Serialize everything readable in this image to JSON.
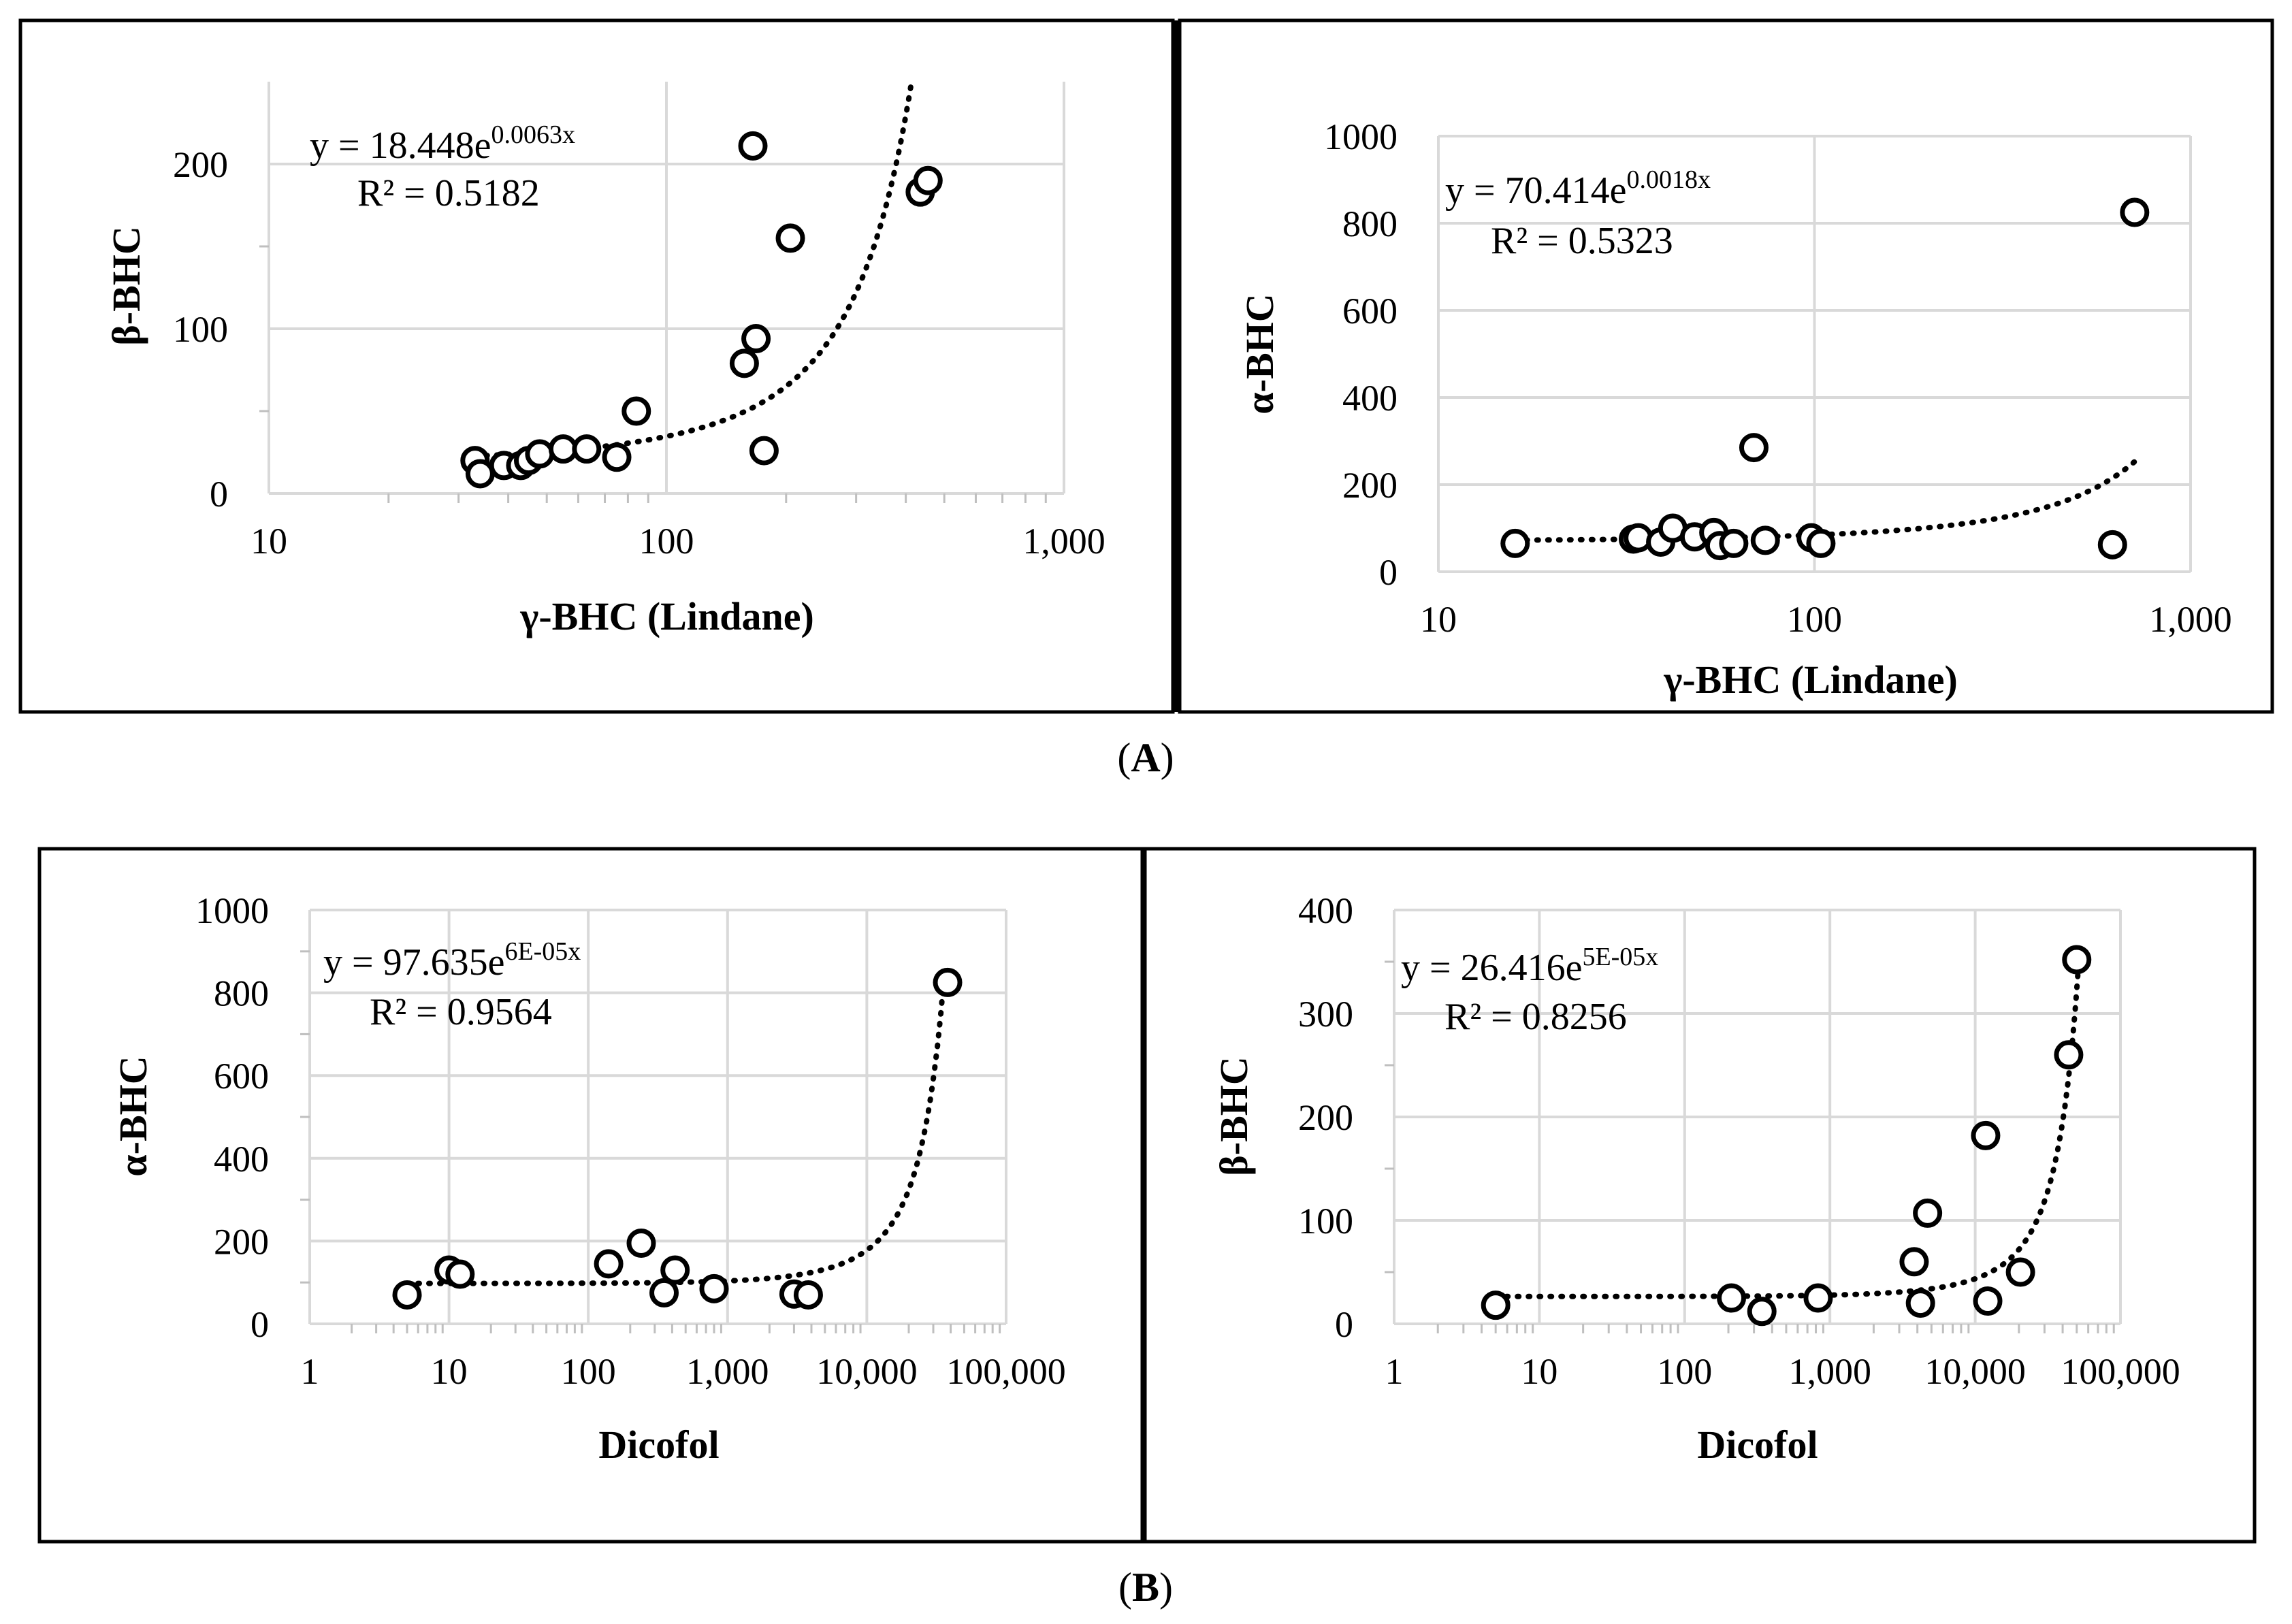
{
  "figure": {
    "label_a": "(A)",
    "label_a_letter": "A",
    "label_b": "(B)",
    "label_b_letter": "B",
    "stroke_color": "#000000",
    "grid_color": "#d9d9d9"
  },
  "chart_data": [
    {
      "id": "a-left",
      "type": "scatter",
      "x_scale": "log",
      "xlim": [
        10,
        1000
      ],
      "ylim": [
        0,
        250
      ],
      "x_ticks": [
        10,
        100,
        1000
      ],
      "x_tick_labels": [
        "10",
        "100",
        "1,000"
      ],
      "y_ticks": [
        0,
        100,
        200
      ],
      "y_tick_labels": [
        "0",
        "100",
        "200"
      ],
      "y_grid": [
        0,
        100,
        200
      ],
      "xlabel": "γ-BHC (Lindane)",
      "ylabel": "β-BHC",
      "equation_main": "y = 18.448e",
      "equation_exp": "0.0063x",
      "r2": "R² = 0.5182",
      "trend": {
        "kind": "exp",
        "a": 18.448,
        "b": 0.0063,
        "x_from": 33,
        "x_to": 415
      },
      "x": [
        33,
        34,
        39,
        43,
        45,
        48,
        55,
        63,
        75,
        84,
        157,
        165,
        168,
        176,
        205,
        435,
        455
      ],
      "y": [
        20,
        12,
        17,
        17,
        20,
        24,
        27,
        27,
        22,
        50,
        79,
        211,
        94,
        26,
        155,
        183,
        190
      ]
    },
    {
      "id": "a-right",
      "type": "scatter",
      "x_scale": "log",
      "xlim": [
        10,
        1000
      ],
      "ylim": [
        0,
        1000
      ],
      "x_ticks": [
        10,
        100,
        1000
      ],
      "x_tick_labels": [
        "10",
        "100",
        "1,000"
      ],
      "y_ticks": [
        0,
        200,
        400,
        600,
        800,
        1000
      ],
      "y_tick_labels": [
        "0",
        "200",
        "400",
        "600",
        "800",
        "1000"
      ],
      "y_grid": [
        200,
        400,
        600,
        800,
        1000
      ],
      "xlabel": "γ-BHC (Lindane)",
      "ylabel": "α-BHC",
      "equation_main": "y = 70.414e",
      "equation_exp": "0.0018x",
      "r2": "R² = 0.5323",
      "trend": {
        "kind": "exp",
        "a": 70.414,
        "b": 0.0018,
        "x_from": 16,
        "x_to": 720
      },
      "x": [
        16,
        33,
        34,
        39,
        42,
        48,
        54,
        56,
        61,
        69,
        74,
        98,
        104,
        620,
        710
      ],
      "y": [
        65,
        75,
        78,
        68,
        100,
        80,
        90,
        60,
        65,
        285,
        72,
        78,
        65,
        62,
        825
      ]
    },
    {
      "id": "b-left",
      "type": "scatter",
      "x_scale": "log",
      "xlim": [
        1,
        100000
      ],
      "ylim": [
        0,
        1000
      ],
      "x_ticks": [
        1,
        10,
        100,
        1000,
        10000,
        100000
      ],
      "x_tick_labels": [
        "1",
        "10",
        "100",
        "1,000",
        "10,000",
        "100,000"
      ],
      "y_ticks": [
        0,
        200,
        400,
        600,
        800,
        1000
      ],
      "y_tick_labels": [
        "0",
        "200",
        "400",
        "600",
        "800",
        "1000"
      ],
      "y_grid": [
        200,
        400,
        600,
        800,
        1000
      ],
      "xlabel": "Dicofol",
      "ylabel": "α-BHC",
      "equation_main": "y = 97.635e",
      "equation_exp": "6E-05x",
      "r2": "R² = 0.9564",
      "trend": {
        "kind": "exp",
        "a": 97.635,
        "b": 6e-05,
        "x_from": 5,
        "x_to": 36000
      },
      "x": [
        5,
        10,
        12,
        140,
        240,
        350,
        420,
        800,
        3000,
        3800,
        38000
      ],
      "y": [
        70,
        130,
        120,
        145,
        195,
        75,
        130,
        85,
        72,
        70,
        825
      ]
    },
    {
      "id": "b-right",
      "type": "scatter",
      "x_scale": "log",
      "xlim": [
        1,
        100000
      ],
      "ylim": [
        0,
        400
      ],
      "x_ticks": [
        1,
        10,
        100,
        1000,
        10000,
        100000
      ],
      "x_tick_labels": [
        "1",
        "10",
        "100",
        "1,000",
        "10,000",
        "100,000"
      ],
      "y_ticks": [
        0,
        100,
        200,
        300,
        400
      ],
      "y_tick_labels": [
        "0",
        "100",
        "200",
        "300",
        "400"
      ],
      "y_grid": [
        100,
        200,
        300,
        400
      ],
      "xlabel": "Dicofol",
      "ylabel": "β-BHC",
      "equation_main": "y = 26.416e",
      "equation_exp": "5E-05x",
      "r2": "R² = 0.8256",
      "trend": {
        "kind": "exp",
        "a": 26.416,
        "b": 5e-05,
        "x_from": 5,
        "x_to": 52000
      },
      "x": [
        5,
        210,
        340,
        830,
        3800,
        4200,
        4700,
        11800,
        12200,
        20500,
        44000,
        50000
      ],
      "y": [
        18,
        25,
        12,
        25,
        60,
        20,
        107,
        182,
        22,
        50,
        260,
        352
      ]
    }
  ]
}
